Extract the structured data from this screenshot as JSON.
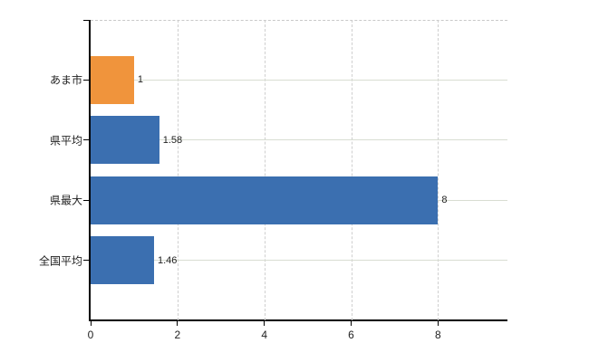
{
  "chart_data": {
    "type": "bar",
    "orientation": "horizontal",
    "title": "",
    "xlabel": "",
    "ylabel": "",
    "categories": [
      "あま市",
      "県平均",
      "県最大",
      "全国平均"
    ],
    "values": [
      1,
      1.58,
      8,
      1.46
    ],
    "value_labels": [
      "1",
      "1.58",
      "8",
      "1.46"
    ],
    "bar_colors": [
      "#f0943c",
      "#3b6fb0",
      "#3b6fb0",
      "#3b6fb0"
    ],
    "xlim": [
      0,
      9.6
    ],
    "xticks": [
      0,
      2,
      4,
      6,
      8
    ],
    "xtick_labels": [
      "0",
      "2",
      "4",
      "6",
      "8"
    ],
    "grid": {
      "vertical": "dashed",
      "horizontal": "solid"
    },
    "legend": "none"
  },
  "colors": {
    "highlight_bar": "#f0943c",
    "default_bar": "#3b6fb0",
    "axis": "#000000",
    "grid_vertical": "#cfcfcf",
    "grid_horizontal": "#d8ddd2",
    "top_border": "#c9c9c9",
    "text": "#222222",
    "background": "#ffffff"
  }
}
